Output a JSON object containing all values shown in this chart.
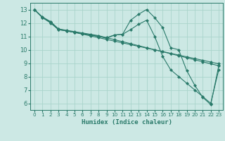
{
  "title": "",
  "xlabel": "Humidex (Indice chaleur)",
  "background_color": "#cce8e4",
  "grid_color": "#aad4cc",
  "line_color": "#2a7a6a",
  "xlim": [
    -0.5,
    23.5
  ],
  "ylim": [
    5.5,
    13.5
  ],
  "xticks": [
    0,
    1,
    2,
    3,
    4,
    5,
    6,
    7,
    8,
    9,
    10,
    11,
    12,
    13,
    14,
    15,
    16,
    17,
    18,
    19,
    20,
    21,
    22,
    23
  ],
  "yticks": [
    6,
    7,
    8,
    9,
    10,
    11,
    12,
    13
  ],
  "series": [
    [
      13.0,
      12.4,
      12.0,
      11.5,
      11.4,
      11.3,
      11.2,
      11.1,
      11.0,
      10.9,
      11.1,
      11.15,
      12.2,
      12.65,
      13.0,
      12.4,
      11.65,
      10.15,
      10.0,
      8.45,
      7.35,
      6.45,
      5.9,
      8.8
    ],
    [
      13.0,
      12.4,
      12.05,
      11.5,
      11.4,
      11.3,
      11.2,
      11.1,
      11.0,
      10.85,
      11.1,
      11.15,
      11.5,
      11.9,
      12.2,
      11.0,
      9.5,
      8.5,
      8.0,
      7.5,
      7.0,
      6.5,
      6.0,
      8.5
    ],
    [
      13.0,
      12.4,
      12.1,
      11.55,
      11.45,
      11.35,
      11.25,
      11.15,
      11.05,
      10.9,
      10.75,
      10.6,
      10.45,
      10.3,
      10.15,
      10.0,
      9.85,
      9.7,
      9.55,
      9.4,
      9.25,
      9.1,
      8.95,
      8.8
    ],
    [
      13.0,
      12.45,
      12.1,
      11.55,
      11.42,
      11.29,
      11.16,
      11.03,
      10.9,
      10.77,
      10.64,
      10.51,
      10.38,
      10.25,
      10.12,
      9.99,
      9.86,
      9.73,
      9.6,
      9.47,
      9.34,
      9.21,
      9.08,
      8.95
    ]
  ]
}
